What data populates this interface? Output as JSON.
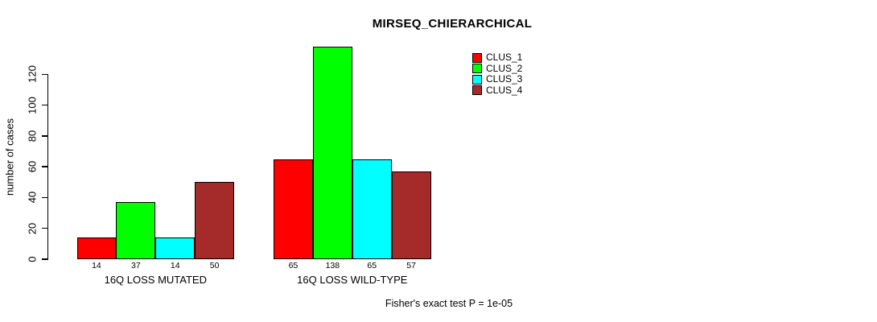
{
  "chart_data": {
    "type": "bar",
    "title": "MIRSEQ_CHIERARCHICAL",
    "ylabel": "number of cases",
    "xlabel": "",
    "categories": [
      "16Q LOSS MUTATED",
      "16Q LOSS WILD-TYPE"
    ],
    "series": [
      {
        "name": "CLUS_1",
        "color": "#FF0000",
        "values": [
          14,
          65
        ]
      },
      {
        "name": "CLUS_2",
        "color": "#00FF00",
        "values": [
          37,
          138
        ]
      },
      {
        "name": "CLUS_3",
        "color": "#00FFFF",
        "values": [
          14,
          65
        ]
      },
      {
        "name": "CLUS_4",
        "color": "#A52A2A",
        "values": [
          50,
          57
        ]
      }
    ],
    "yticks": [
      0,
      20,
      40,
      60,
      80,
      100,
      120
    ],
    "ylim": [
      0,
      138
    ],
    "grid": false,
    "legend_position": "top-right",
    "bar_value_labels": true,
    "annotation": "Fisher's exact test P = 1e-05",
    "colors": {
      "background": "#FFFFFF",
      "axis": "#000000",
      "bar_border": "#000000",
      "text": "#000000"
    }
  }
}
